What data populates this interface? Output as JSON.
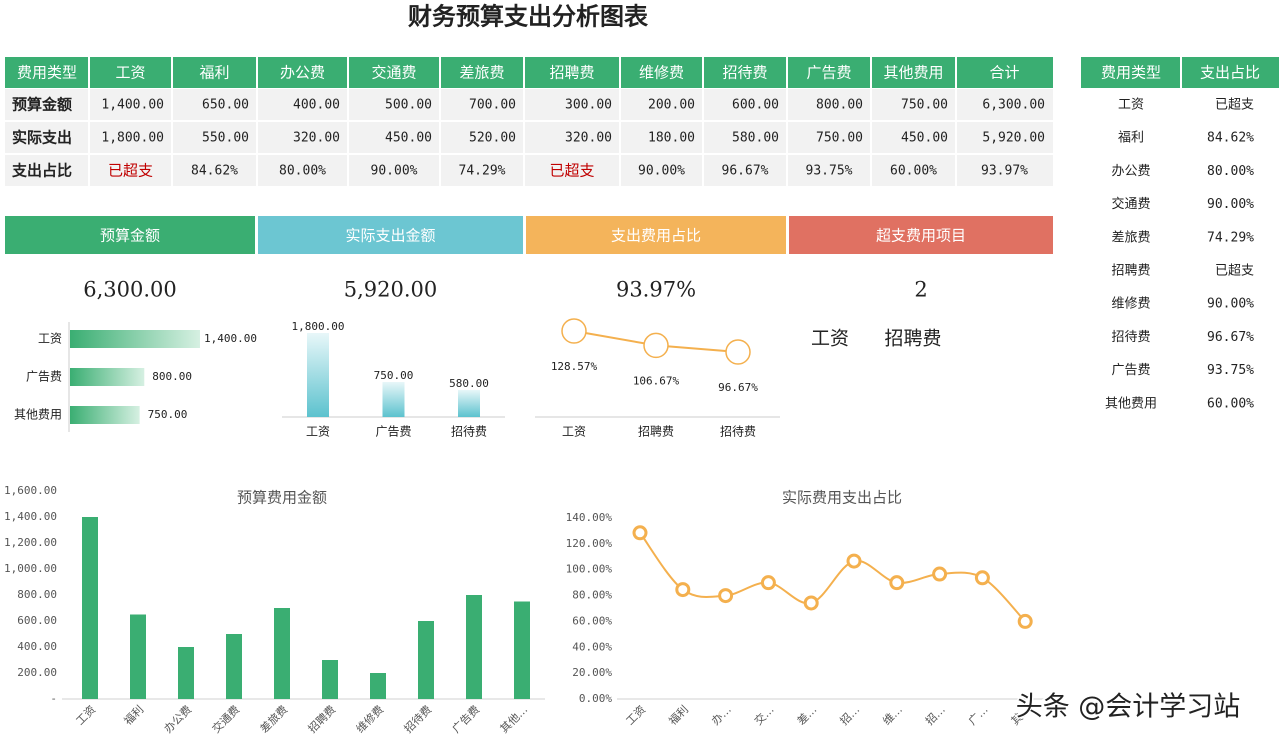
{
  "title": "财务预算支出分析图表",
  "table": {
    "header": [
      "费用类型",
      "工资",
      "福利",
      "办公费",
      "交通费",
      "差旅费",
      "招聘费",
      "维修费",
      "招待费",
      "广告费",
      "其他费用",
      "合计"
    ],
    "rows": [
      [
        "预算金额",
        "1,400.00",
        "650.00",
        "400.00",
        "500.00",
        "700.00",
        "300.00",
        "200.00",
        "600.00",
        "800.00",
        "750.00",
        "6,300.00"
      ],
      [
        "实际支出",
        "1,800.00",
        "550.00",
        "320.00",
        "450.00",
        "520.00",
        "320.00",
        "180.00",
        "580.00",
        "750.00",
        "450.00",
        "5,920.00"
      ],
      [
        "支出占比",
        "已超支",
        "84.62%",
        "80.00%",
        "90.00%",
        "74.29%",
        "已超支",
        "90.00%",
        "96.67%",
        "93.75%",
        "60.00%",
        "93.97%"
      ]
    ]
  },
  "side_table": {
    "header": [
      "费用类型",
      "支出占比"
    ],
    "rows": [
      [
        "工资",
        "已超支"
      ],
      [
        "福利",
        "84.62%"
      ],
      [
        "办公费",
        "80.00%"
      ],
      [
        "交通费",
        "90.00%"
      ],
      [
        "差旅费",
        "74.29%"
      ],
      [
        "招聘费",
        "已超支"
      ],
      [
        "维修费",
        "90.00%"
      ],
      [
        "招待费",
        "96.67%"
      ],
      [
        "广告费",
        "93.75%"
      ],
      [
        "其他费用",
        "60.00%"
      ]
    ]
  },
  "cards": [
    {
      "label": "预算金额",
      "value": "6,300.00",
      "color": "#3aae72"
    },
    {
      "label": "实际支出金额",
      "value": "5,920.00",
      "color": "#6cc6d2"
    },
    {
      "label": "支出费用占比",
      "value": "93.97%",
      "color": "#f4b45b"
    },
    {
      "label": "超支费用项目",
      "value": "2",
      "color": "#e07162",
      "items": [
        "工资",
        "招聘费"
      ]
    }
  ],
  "chart_data": [
    {
      "type": "hbar",
      "categories": [
        "工资",
        "广告费",
        "其他费用"
      ],
      "values": [
        1400,
        800,
        750
      ],
      "value_labels": [
        "1,400.00",
        "800.00",
        "750.00"
      ],
      "color": "#3aae72"
    },
    {
      "type": "bar",
      "categories": [
        "工资",
        "广告费",
        "招待费"
      ],
      "values": [
        1800,
        750,
        580
      ],
      "value_labels": [
        "1,800.00",
        "750.00",
        "580.00"
      ],
      "color": "#5cc2ce"
    },
    {
      "type": "line",
      "categories": [
        "工资",
        "招聘费",
        "招待费"
      ],
      "values": [
        128.57,
        106.67,
        96.67
      ],
      "value_labels": [
        "128.57%",
        "106.67%",
        "96.67%"
      ],
      "color": "#f4b04e"
    },
    {
      "type": "bar",
      "title": "预算费用金额",
      "categories": [
        "工资",
        "福利",
        "办公费",
        "交通费",
        "差旅费",
        "招聘费",
        "维修费",
        "招待费",
        "广告费",
        "其他…"
      ],
      "values": [
        1400,
        650,
        400,
        500,
        700,
        300,
        200,
        600,
        800,
        750
      ],
      "color": "#3aae72",
      "ylim": [
        0,
        1600
      ],
      "yticks": [
        {
          "value": 0,
          "label": "-"
        },
        {
          "value": 200,
          "label": "200.00"
        },
        {
          "value": 400,
          "label": "400.00"
        },
        {
          "value": 600,
          "label": "600.00"
        },
        {
          "value": 800,
          "label": "800.00"
        },
        {
          "value": 1000,
          "label": "1,000.00"
        },
        {
          "value": 1200,
          "label": "1,200.00"
        },
        {
          "value": 1400,
          "label": "1,400.00"
        },
        {
          "value": 1600,
          "label": "1,600.00"
        }
      ]
    },
    {
      "type": "line",
      "title": "实际费用支出占比",
      "categories": [
        "工资",
        "福利",
        "办…",
        "交…",
        "差…",
        "招…",
        "维…",
        "招…",
        "广…",
        "其…"
      ],
      "values": [
        128.57,
        84.62,
        80,
        90,
        74.29,
        106.67,
        90,
        96.67,
        93.75,
        60
      ],
      "color": "#f4b04e",
      "ylim": [
        0,
        140
      ],
      "yticks": [
        {
          "value": 0,
          "label": "0.00%"
        },
        {
          "value": 20,
          "label": "20.00%"
        },
        {
          "value": 40,
          "label": "40.00%"
        },
        {
          "value": 60,
          "label": "60.00%"
        },
        {
          "value": 80,
          "label": "80.00%"
        },
        {
          "value": 100,
          "label": "100.00%"
        },
        {
          "value": 120,
          "label": "120.00%"
        },
        {
          "value": 140,
          "label": "140.00%"
        }
      ]
    }
  ],
  "watermark": "头条 @会计学习站"
}
